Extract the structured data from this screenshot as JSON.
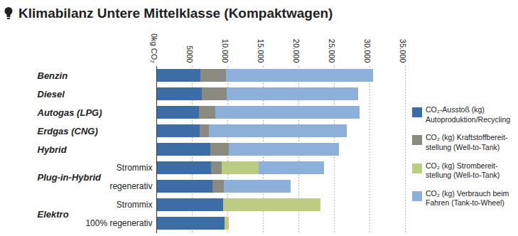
{
  "chart_data": {
    "type": "bar",
    "title": "Klimabilanz Untere Mittelklasse (Kompaktwagen)",
    "orientation": "horizontal",
    "stacked": true,
    "grid": true,
    "legend": "right",
    "categories": [
      "Benzin",
      "Diesel",
      "Autogas (LPG)",
      "Erdgas (CNG)",
      "Hybrid",
      "Plug-in-Hybrid",
      "Plug-in-Hybrid",
      "Elektro",
      "Elektro"
    ],
    "sublabels": [
      null,
      null,
      null,
      null,
      null,
      "Strommix",
      "regenerativ",
      "Strommix",
      "100% regenerativ"
    ],
    "xlim": [
      0,
      35000
    ],
    "xticks": [
      {
        "value": 0,
        "label": "0kg CO₂"
      },
      5000,
      {
        "value": 10000,
        "label": "10.000"
      },
      {
        "value": 15000,
        "label": "15.000"
      },
      {
        "value": 20000,
        "label": "20.000"
      },
      {
        "value": 25000,
        "label": "25.000"
      },
      {
        "value": 30000,
        "label": "30.000"
      },
      {
        "value": 35000,
        "label": "35.000"
      }
    ],
    "series": [
      {
        "name": "CO₂-Ausstoß (kg)\nAutoproduktion/Recycling",
        "color": "#3c6da6",
        "values": [
          6200,
          6400,
          6000,
          6100,
          7600,
          7700,
          7900,
          9400,
          9600
        ]
      },
      {
        "name": "CO₂ (kg) Kraftstoffbereit-\nstellung (Well-to-Tank)",
        "color": "#8b8a80",
        "values": [
          3600,
          3500,
          2300,
          1300,
          2600,
          1500,
          1600,
          0,
          0
        ]
      },
      {
        "name": "CO₂ (kg) Strombereit-\nstellung (Well-to-Tank)",
        "color": "#bccd83",
        "values": [
          0,
          0,
          0,
          0,
          0,
          5200,
          0,
          13700,
          600
        ]
      },
      {
        "name": "CO₂ (kg) Verbrauch beim\nFahren (Tank-to-Wheel)",
        "color": "#8db0da",
        "values": [
          20700,
          18500,
          20300,
          19400,
          15500,
          9200,
          9400,
          0,
          0
        ]
      }
    ]
  }
}
